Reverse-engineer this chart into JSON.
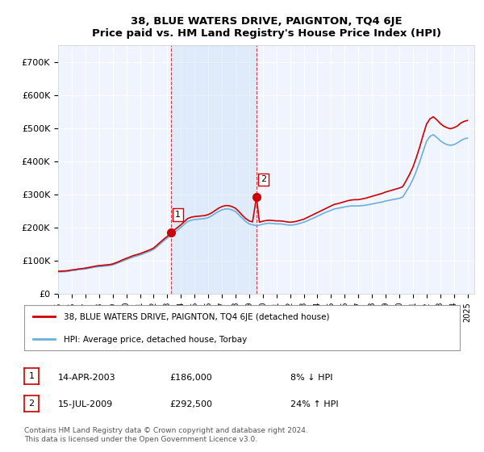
{
  "title": "38, BLUE WATERS DRIVE, PAIGNTON, TQ4 6JE",
  "subtitle": "Price paid vs. HM Land Registry's House Price Index (HPI)",
  "background_color": "#ffffff",
  "plot_bg_color": "#f0f4ff",
  "grid_color": "#ffffff",
  "ylim": [
    0,
    750000
  ],
  "yticks": [
    0,
    100000,
    200000,
    300000,
    400000,
    500000,
    600000,
    700000
  ],
  "ytick_labels": [
    "£0",
    "£100K",
    "£200K",
    "£300K",
    "£400K",
    "£500K",
    "£600K",
    "£700K"
  ],
  "xlim_start": 1995.0,
  "xlim_end": 2025.5,
  "hpi_line_color": "#6ab0de",
  "sale_line_color": "#cc0000",
  "sale_marker_color": "#cc0000",
  "vline_color": "#cc0000",
  "legend_label_sale": "38, BLUE WATERS DRIVE, PAIGNTON, TQ4 6JE (detached house)",
  "legend_label_hpi": "HPI: Average price, detached house, Torbay",
  "sale1_x": 2003.28,
  "sale1_y": 186000,
  "sale1_label": "1",
  "sale2_x": 2009.54,
  "sale2_y": 292500,
  "sale2_label": "2",
  "table_data": [
    {
      "num": "1",
      "date": "14-APR-2003",
      "price": "£186,000",
      "hpi": "8% ↓ HPI"
    },
    {
      "num": "2",
      "date": "15-JUL-2009",
      "price": "£292,500",
      "hpi": "24% ↑ HPI"
    }
  ],
  "footnote": "Contains HM Land Registry data © Crown copyright and database right 2024.\nThis data is licensed under the Open Government Licence v3.0.",
  "hpi_years": [
    1995.0,
    1995.25,
    1995.5,
    1995.75,
    1996.0,
    1996.25,
    1996.5,
    1996.75,
    1997.0,
    1997.25,
    1997.5,
    1997.75,
    1998.0,
    1998.25,
    1998.5,
    1998.75,
    1999.0,
    1999.25,
    1999.5,
    1999.75,
    2000.0,
    2000.25,
    2000.5,
    2000.75,
    2001.0,
    2001.25,
    2001.5,
    2001.75,
    2002.0,
    2002.25,
    2002.5,
    2002.75,
    2003.0,
    2003.25,
    2003.5,
    2003.75,
    2004.0,
    2004.25,
    2004.5,
    2004.75,
    2005.0,
    2005.25,
    2005.5,
    2005.75,
    2006.0,
    2006.25,
    2006.5,
    2006.75,
    2007.0,
    2007.25,
    2007.5,
    2007.75,
    2008.0,
    2008.25,
    2008.5,
    2008.75,
    2009.0,
    2009.25,
    2009.5,
    2009.75,
    2010.0,
    2010.25,
    2010.5,
    2010.75,
    2011.0,
    2011.25,
    2011.5,
    2011.75,
    2012.0,
    2012.25,
    2012.5,
    2012.75,
    2013.0,
    2013.25,
    2013.5,
    2013.75,
    2014.0,
    2014.25,
    2014.5,
    2014.75,
    2015.0,
    2015.25,
    2015.5,
    2015.75,
    2016.0,
    2016.25,
    2016.5,
    2016.75,
    2017.0,
    2017.25,
    2017.5,
    2017.75,
    2018.0,
    2018.25,
    2018.5,
    2018.75,
    2019.0,
    2019.25,
    2019.5,
    2019.75,
    2020.0,
    2020.25,
    2020.5,
    2020.75,
    2021.0,
    2021.25,
    2021.5,
    2021.75,
    2022.0,
    2022.25,
    2022.5,
    2022.75,
    2023.0,
    2023.25,
    2023.5,
    2023.75,
    2024.0,
    2024.25,
    2024.5,
    2024.75,
    2025.0
  ],
  "hpi_values": [
    66000,
    66500,
    67000,
    68000,
    70000,
    71000,
    73000,
    74000,
    75000,
    77000,
    79000,
    81000,
    82000,
    83000,
    84000,
    85000,
    87000,
    91000,
    95000,
    99000,
    103000,
    107000,
    111000,
    114000,
    117000,
    121000,
    125000,
    129000,
    134000,
    142000,
    151000,
    160000,
    168000,
    176000,
    184000,
    192000,
    200000,
    210000,
    218000,
    222000,
    224000,
    225000,
    226000,
    227000,
    230000,
    235000,
    242000,
    248000,
    253000,
    256000,
    256000,
    253000,
    248000,
    238000,
    228000,
    218000,
    211000,
    208000,
    206000,
    207000,
    210000,
    212000,
    213000,
    212000,
    211000,
    211000,
    210000,
    208000,
    207000,
    208000,
    210000,
    213000,
    216000,
    220000,
    225000,
    229000,
    234000,
    239000,
    244000,
    248000,
    252000,
    256000,
    258000,
    260000,
    262000,
    264000,
    265000,
    265000,
    265000,
    266000,
    267000,
    269000,
    271000,
    273000,
    275000,
    277000,
    280000,
    282000,
    284000,
    286000,
    288000,
    292000,
    308000,
    325000,
    345000,
    370000,
    398000,
    430000,
    460000,
    475000,
    480000,
    472000,
    462000,
    455000,
    450000,
    448000,
    450000,
    455000,
    462000,
    467000,
    470000
  ],
  "sale_hpi_years": [
    1995.0,
    1995.25,
    1995.5,
    1995.75,
    1996.0,
    1996.25,
    1996.5,
    1996.75,
    1997.0,
    1997.25,
    1997.5,
    1997.75,
    1998.0,
    1998.25,
    1998.5,
    1998.75,
    1999.0,
    1999.25,
    1999.5,
    1999.75,
    2000.0,
    2000.25,
    2000.5,
    2000.75,
    2001.0,
    2001.25,
    2001.5,
    2001.75,
    2002.0,
    2002.25,
    2002.5,
    2002.75,
    2003.0,
    2003.28,
    2003.5,
    2003.75,
    2004.0,
    2004.25,
    2004.5,
    2004.75,
    2005.0,
    2005.25,
    2005.5,
    2005.75,
    2006.0,
    2006.25,
    2006.5,
    2006.75,
    2007.0,
    2007.25,
    2007.5,
    2007.75,
    2008.0,
    2008.25,
    2008.5,
    2008.75,
    2009.0,
    2009.25,
    2009.54,
    2009.75,
    2010.0,
    2010.25,
    2010.5,
    2010.75,
    2011.0,
    2011.25,
    2011.5,
    2011.75,
    2012.0,
    2012.25,
    2012.5,
    2012.75,
    2013.0,
    2013.25,
    2013.5,
    2013.75,
    2014.0,
    2014.25,
    2014.5,
    2014.75,
    2015.0,
    2015.25,
    2015.5,
    2015.75,
    2016.0,
    2016.25,
    2016.5,
    2016.75,
    2017.0,
    2017.25,
    2017.5,
    2017.75,
    2018.0,
    2018.25,
    2018.5,
    2018.75,
    2019.0,
    2019.25,
    2019.5,
    2019.75,
    2020.0,
    2020.25,
    2020.5,
    2020.75,
    2021.0,
    2021.25,
    2021.5,
    2021.75,
    2022.0,
    2022.25,
    2022.5,
    2022.75,
    2023.0,
    2023.25,
    2023.5,
    2023.75,
    2024.0,
    2024.25,
    2024.5,
    2024.75,
    2025.0
  ],
  "sale_indexed_values": [
    68000,
    68500,
    69000,
    70000,
    72000,
    73000,
    75000,
    76000,
    77500,
    79500,
    81500,
    83500,
    85000,
    86000,
    87000,
    88000,
    90000,
    94000,
    98000,
    103000,
    107000,
    111000,
    115000,
    118000,
    121000,
    125000,
    129000,
    133000,
    138000,
    147000,
    156000,
    165000,
    173000,
    186000,
    192000,
    200000,
    208000,
    218000,
    227000,
    231000,
    233000,
    234000,
    235000,
    236000,
    239000,
    244000,
    251000,
    258000,
    263000,
    266000,
    266000,
    263000,
    258000,
    248000,
    237000,
    227000,
    220000,
    217000,
    292500,
    216000,
    219000,
    221000,
    222000,
    221000,
    220000,
    220000,
    219000,
    217000,
    216000,
    217000,
    219000,
    222000,
    225000,
    230000,
    235000,
    240000,
    245000,
    250000,
    255000,
    260000,
    265000,
    270000,
    272000,
    275000,
    278000,
    281000,
    283000,
    284000,
    284000,
    286000,
    288000,
    291000,
    294000,
    297000,
    300000,
    303000,
    307000,
    310000,
    313000,
    316000,
    319000,
    323000,
    341000,
    360000,
    382000,
    411000,
    443000,
    479000,
    512000,
    528000,
    534000,
    525000,
    514000,
    506000,
    501000,
    498000,
    501000,
    506000,
    515000,
    520000,
    523000
  ]
}
